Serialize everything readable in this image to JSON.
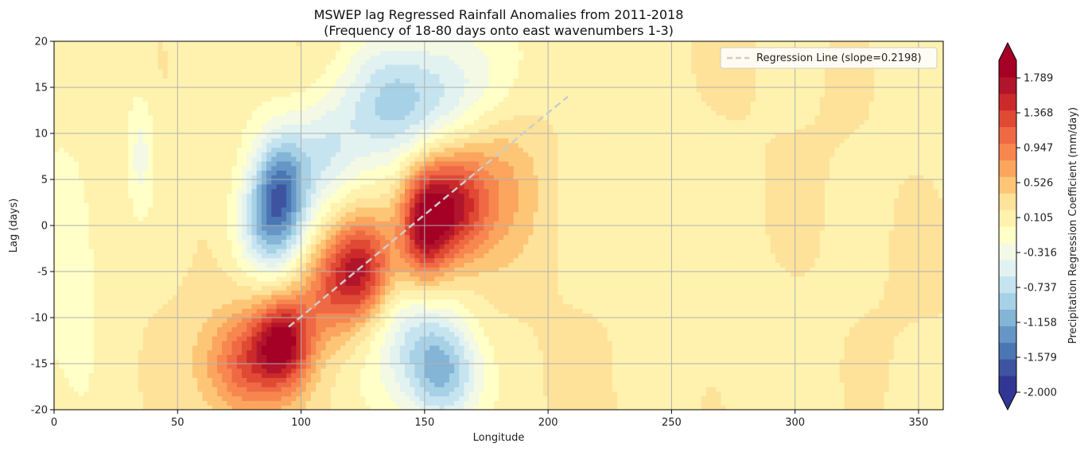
{
  "chart_data": {
    "type": "heatmap",
    "title": "MSWEP lag Regressed Rainfall Anomalies from 2011-2018",
    "subtitle": "(Frequency of 18-80 days onto east wavenumbers 1-3)",
    "xlabel": "Longitude",
    "ylabel": "Lag (days)",
    "xlim": [
      0,
      360
    ],
    "ylim": [
      -20,
      20
    ],
    "xticks": [
      0,
      50,
      100,
      150,
      200,
      250,
      300,
      350
    ],
    "yticks": [
      -20,
      -15,
      -10,
      -5,
      0,
      5,
      10,
      15,
      20
    ],
    "grid": true,
    "colorbar": {
      "label": "Precipitation Regression Coefficient (mm/day)",
      "range": [
        -2.0,
        2.0
      ],
      "tick_labels": [
        "-2.000",
        "-1.579",
        "-1.158",
        "-0.737",
        "-0.316",
        "0.105",
        "0.526",
        "0.947",
        "1.368",
        "1.789"
      ],
      "tick_values": [
        -2.0,
        -1.579,
        -1.158,
        -0.737,
        -0.316,
        0.105,
        0.526,
        0.947,
        1.368,
        1.789
      ],
      "colors": [
        "#313695",
        "#3e54a1",
        "#4a76b3",
        "#6596c6",
        "#84b4d6",
        "#a7d1e6",
        "#c6e4ef",
        "#e2f2f1",
        "#f3f9e4",
        "#ffffc7",
        "#fff2af",
        "#fee29a",
        "#fdc677",
        "#fba55f",
        "#f7864f",
        "#ef6944",
        "#e04a35",
        "#cc2a2a",
        "#b1152b",
        "#a50026"
      ],
      "under_color": "#313695",
      "over_color": "#a50026"
    },
    "regression_line": {
      "label": "Regression Line (slope=0.2198)",
      "x": [
        95,
        208
      ],
      "y": [
        -11,
        14
      ],
      "color": "#cccccc",
      "style": "dashed"
    },
    "legend_position": "top-right",
    "features": [
      {
        "sign": "positive",
        "lon": 93,
        "lag": -12.5,
        "amp": 1.45,
        "sx": 8,
        "sy": 3.2
      },
      {
        "sign": "positive",
        "lon": 78,
        "lag": -15,
        "amp": 1.0,
        "sx": 12,
        "sy": 4
      },
      {
        "sign": "positive",
        "lon": 125,
        "lag": -4.5,
        "amp": 1.25,
        "sx": 9,
        "sy": 3.8
      },
      {
        "sign": "positive",
        "lon": 112,
        "lag": -7,
        "amp": 0.8,
        "sx": 10,
        "sy": 4
      },
      {
        "sign": "positive",
        "lon": 150,
        "lag": 0,
        "amp": 1.55,
        "sx": 7,
        "sy": 4.5
      },
      {
        "sign": "positive",
        "lon": 162,
        "lag": 2,
        "amp": 1.2,
        "sx": 9,
        "sy": 4
      },
      {
        "sign": "positive",
        "lon": 178,
        "lag": 5,
        "amp": 0.45,
        "sx": 14,
        "sy": 6
      },
      {
        "sign": "negative",
        "lon": 92,
        "lag": 4,
        "amp": -1.3,
        "sx": 8,
        "sy": 4.5
      },
      {
        "sign": "negative",
        "lon": 85,
        "lag": 0,
        "amp": -0.8,
        "sx": 9,
        "sy": 4
      },
      {
        "sign": "negative",
        "lon": 135,
        "lag": 13,
        "amp": -0.85,
        "sx": 14,
        "sy": 5
      },
      {
        "sign": "negative",
        "lon": 160,
        "lag": 15,
        "amp": -0.7,
        "sx": 16,
        "sy": 5
      },
      {
        "sign": "negative",
        "lon": 158,
        "lag": -16,
        "amp": -1.05,
        "sx": 10,
        "sy": 4
      },
      {
        "sign": "negative",
        "lon": 145,
        "lag": -12,
        "amp": -0.6,
        "sx": 12,
        "sy": 5
      },
      {
        "sign": "negative",
        "lon": 110,
        "lag": 8,
        "amp": -0.6,
        "sx": 10,
        "sy": 4
      },
      {
        "sign": "negative",
        "lon": 35,
        "lag": 8,
        "amp": -0.45,
        "sx": 4,
        "sy": 5
      },
      {
        "sign": "negative",
        "lon": 5,
        "lag": -1,
        "amp": -0.35,
        "sx": 12,
        "sy": 9
      }
    ]
  }
}
